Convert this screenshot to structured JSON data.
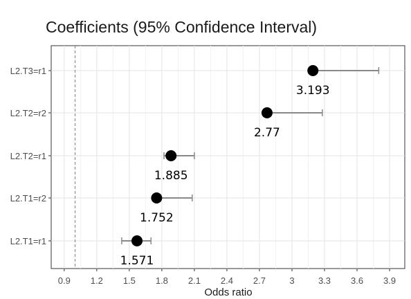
{
  "chart_data": {
    "type": "forest",
    "title": "Coefficients (95% Confidence Interval)",
    "xlabel": "Odds ratio",
    "ylabel": "",
    "xlim": [
      0.78,
      4.04
    ],
    "xticks": [
      0.9,
      1.2,
      1.5,
      1.8,
      2.1,
      2.4,
      2.7,
      3.0,
      3.3,
      3.6,
      3.9
    ],
    "xtick_labels": [
      "0.9",
      "1.2",
      "1.5",
      "1.8",
      "2.1",
      "2.4",
      "2.7",
      "3",
      "3.3",
      "3.6",
      "3.9"
    ],
    "reference_line": 1.0,
    "grid": true,
    "categories": [
      "L2.T3=r1",
      "L2.T2=r2",
      "L2.T2=r1",
      "L2.T1=r2",
      "L2.T1=r1"
    ],
    "estimates": [
      3.193,
      2.77,
      1.885,
      1.752,
      1.571
    ],
    "estimate_labels": [
      "3.193",
      "2.77",
      "1.885",
      "1.752",
      "1.571"
    ],
    "ci_lower": [
      3.193,
      2.77,
      1.82,
      1.752,
      1.43
    ],
    "ci_upper": [
      3.8,
      3.28,
      2.1,
      2.08,
      1.7
    ]
  }
}
